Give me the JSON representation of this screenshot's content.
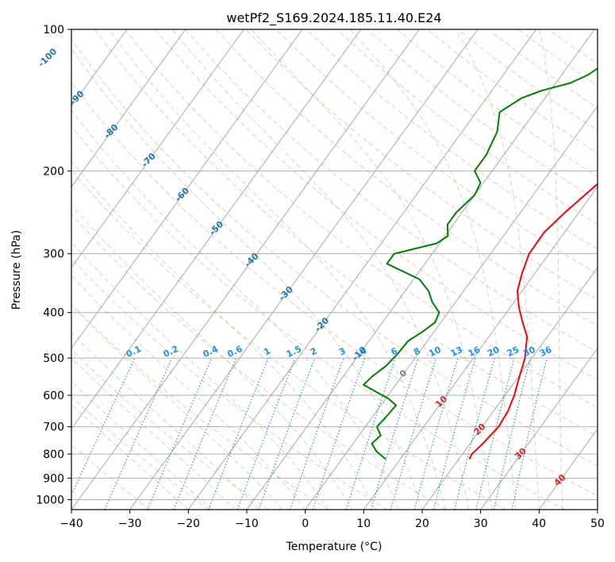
{
  "chart_data": {
    "type": "line",
    "title": "wetPf2_S169.2024.185.11.40.E24",
    "xlabel": "Temperature (°C)",
    "ylabel": "Pressure (hPa)",
    "xlim": [
      -40,
      50
    ],
    "ylim": [
      1050,
      100
    ],
    "y_scale": "log",
    "grid": true,
    "x_ticks": [
      -40,
      -30,
      -20,
      -10,
      0,
      10,
      20,
      30,
      40,
      50
    ],
    "y_ticks": [
      100,
      200,
      300,
      400,
      500,
      600,
      700,
      800,
      900,
      1000
    ],
    "series": [
      {
        "color": "#ff0000",
        "points": [
          [
            21.8,
            820
          ],
          [
            21.6,
            800
          ],
          [
            22.2,
            760
          ],
          [
            22.8,
            700
          ],
          [
            22.5,
            650
          ],
          [
            21.6,
            600
          ],
          [
            20.5,
            560
          ],
          [
            18.8,
            500
          ],
          [
            16.5,
            450
          ],
          [
            14.0,
            420
          ],
          [
            11.5,
            390
          ],
          [
            9.2,
            360
          ],
          [
            7.8,
            330
          ],
          [
            6.6,
            300
          ],
          [
            6.5,
            270
          ],
          [
            7.6,
            245
          ],
          [
            9.5,
            215
          ],
          [
            11.2,
            195
          ],
          [
            12.0,
            175
          ],
          [
            11.8,
            155
          ],
          [
            11.0,
            140
          ],
          [
            11.0,
            125
          ],
          [
            11.5,
            112
          ],
          [
            12.2,
            105
          ],
          [
            13.0,
            100
          ]
        ]
      },
      {
        "color": "#008000",
        "points": [
          [
            7.5,
            820
          ],
          [
            5.0,
            790
          ],
          [
            3.2,
            760
          ],
          [
            3.7,
            730
          ],
          [
            2.0,
            700
          ],
          [
            2.3,
            670
          ],
          [
            2.6,
            630
          ],
          [
            0.5,
            610
          ],
          [
            -5.5,
            570
          ],
          [
            -5.0,
            545
          ],
          [
            -4.0,
            520
          ],
          [
            -3.5,
            490
          ],
          [
            -3.3,
            460
          ],
          [
            -2.0,
            440
          ],
          [
            -1.0,
            420
          ],
          [
            -1.5,
            400
          ],
          [
            -4.0,
            380
          ],
          [
            -6.0,
            360
          ],
          [
            -9.0,
            340
          ],
          [
            -16.5,
            315
          ],
          [
            -16.5,
            300
          ],
          [
            -10.5,
            285
          ],
          [
            -9.5,
            275
          ],
          [
            -11.0,
            260
          ],
          [
            -11.0,
            245
          ],
          [
            -10.0,
            225
          ],
          [
            -10.5,
            212
          ],
          [
            -13.0,
            200
          ],
          [
            -13.0,
            185
          ],
          [
            -14.0,
            165
          ],
          [
            -16.0,
            150
          ],
          [
            -14.0,
            140
          ],
          [
            -11.5,
            135
          ],
          [
            -7.5,
            130
          ],
          [
            -5.5,
            125
          ],
          [
            -4.0,
            118
          ],
          [
            -1.5,
            110
          ],
          [
            0.5,
            103
          ],
          [
            1.0,
            100
          ]
        ]
      }
    ],
    "dry_adiabat_color": "#ff7f50",
    "moist_adiabat_color": "#2ca02c",
    "isotherm_color": "#888888",
    "mixing_ratio_color": "#1e90ff",
    "isotherm_labels": [
      "-100",
      "-90",
      "-80",
      "-70",
      "-60",
      "-50",
      "-40",
      "-30",
      "-20",
      "-10",
      "0",
      "10",
      "20",
      "30",
      "40"
    ],
    "mixing_ratio_labels": [
      "0.1",
      "0.2",
      "0.4",
      "0.6",
      "1",
      "1.5",
      "2",
      "3",
      "4",
      "6",
      "8",
      "10",
      "13",
      "16",
      "20",
      "25",
      "30",
      "36"
    ]
  }
}
